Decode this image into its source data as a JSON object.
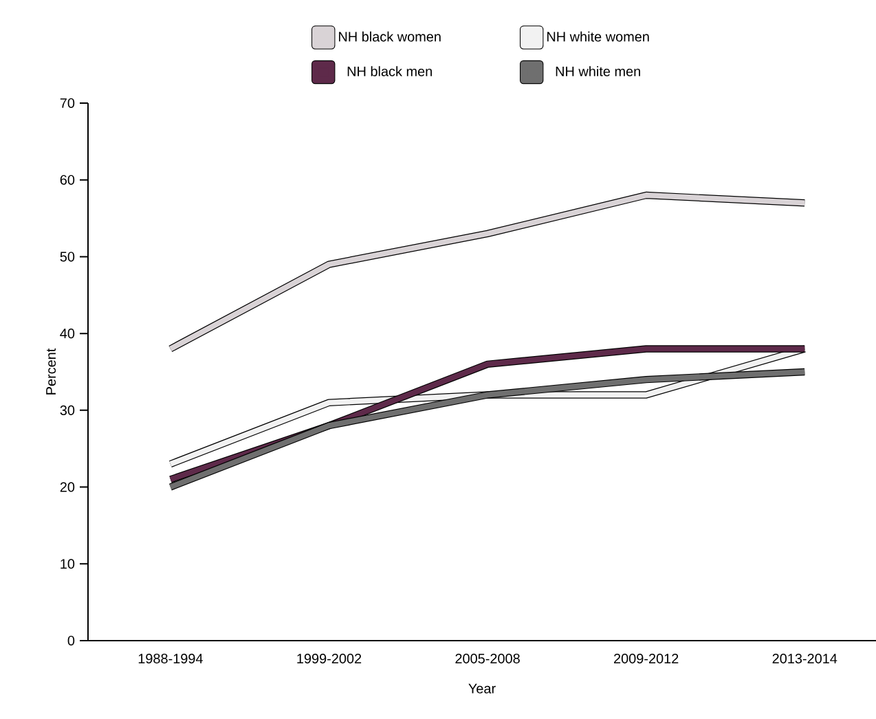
{
  "chart_data": {
    "type": "line",
    "xlabel": "Year",
    "ylabel": "Percent",
    "categories": [
      "1988-1994",
      "1999-2002",
      "2005-2008",
      "2009-2012",
      "2013-2014"
    ],
    "ylim": [
      0,
      70
    ],
    "yticks": [
      0,
      10,
      20,
      30,
      40,
      50,
      60,
      70
    ],
    "legend": "top",
    "marker": "none",
    "line_style": "solid",
    "series": [
      {
        "name": "NH black women",
        "color": "#d9d3d6",
        "values": [
          38,
          49,
          53,
          58,
          57
        ]
      },
      {
        "name": "NH white women",
        "color": "#f2f2f2",
        "values": [
          23,
          31,
          32,
          32,
          38
        ]
      },
      {
        "name": "NH black men",
        "color": "#5e2a4a",
        "values": [
          21,
          28,
          36,
          38,
          38
        ]
      },
      {
        "name": "NH white men",
        "color": "#6f6f6f",
        "values": [
          20,
          28,
          32,
          34,
          35
        ]
      }
    ]
  }
}
